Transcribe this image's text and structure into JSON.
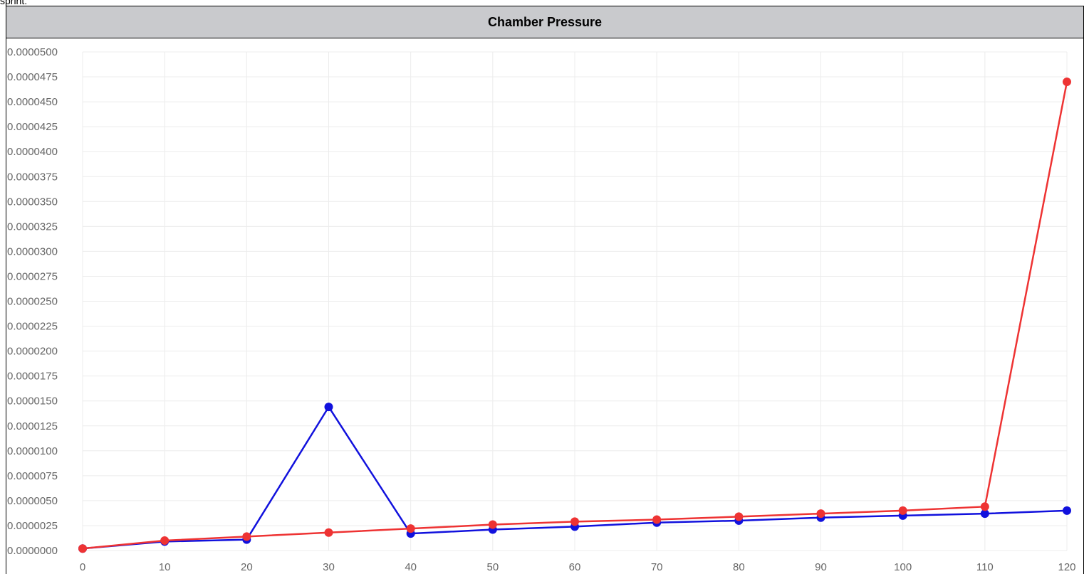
{
  "top_text": "sprint:",
  "panel": {
    "title": "Chamber Pressure"
  },
  "chart_data": {
    "type": "line",
    "title": "Chamber Pressure",
    "xlabel": "",
    "ylabel": "",
    "x": [
      0,
      10,
      20,
      30,
      40,
      50,
      60,
      70,
      80,
      90,
      100,
      110,
      120
    ],
    "xlim": [
      0,
      120
    ],
    "ylim": [
      0,
      5e-05
    ],
    "x_ticks": [
      "0",
      "10",
      "20",
      "30",
      "40",
      "50",
      "60",
      "70",
      "80",
      "90",
      "100",
      "110",
      "120"
    ],
    "y_ticks": [
      "0.0000000",
      "0.0000025",
      "0.0000050",
      "0.0000075",
      "0.0000100",
      "0.0000125",
      "0.0000150",
      "0.0000175",
      "0.0000200",
      "0.0000225",
      "0.0000250",
      "0.0000275",
      "0.0000300",
      "0.0000325",
      "0.0000350",
      "0.0000375",
      "0.0000400",
      "0.0000425",
      "0.0000450",
      "0.0000475",
      "0.0000500"
    ],
    "grid": true,
    "legend": "none",
    "series": [
      {
        "color": "#1111dd",
        "values": [
          2e-07,
          9e-07,
          1.1e-06,
          1.44e-05,
          1.7e-06,
          2.1e-06,
          2.4e-06,
          2.8e-06,
          3e-06,
          3.3e-06,
          3.5e-06,
          3.7e-06,
          4e-06
        ]
      },
      {
        "color": "#ee3333",
        "values": [
          2e-07,
          1e-06,
          1.4e-06,
          1.8e-06,
          2.2e-06,
          2.6e-06,
          2.9e-06,
          3.1e-06,
          3.4e-06,
          3.7e-06,
          4e-06,
          4.4e-06,
          4.7e-05
        ]
      }
    ]
  }
}
